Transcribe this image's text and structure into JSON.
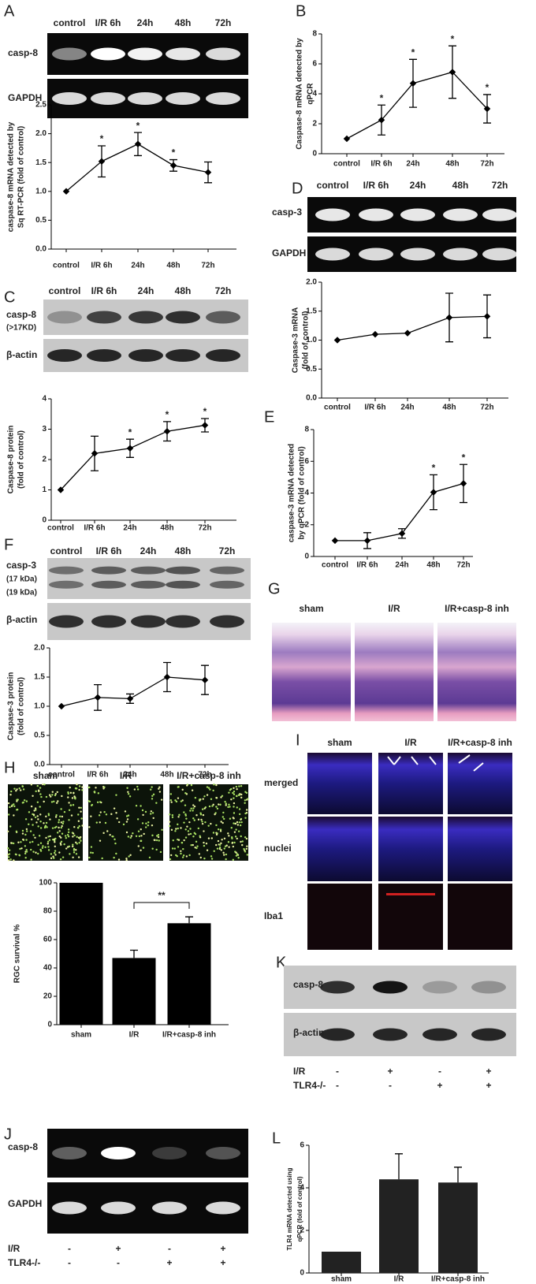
{
  "panel_labels": [
    "A",
    "B",
    "C",
    "D",
    "E",
    "F",
    "G",
    "H",
    "I",
    "J",
    "K",
    "L"
  ],
  "gels": [
    {
      "columns": [
        "control",
        "I/R 6h",
        "24h",
        "48h",
        "72h"
      ],
      "rows": [
        [
          "casp-8"
        ],
        [
          "GAPDH"
        ]
      ]
    },
    {
      "columns": [
        "control",
        "I/R 6h",
        "24h",
        "48h",
        "72h"
      ],
      "rows": [
        [
          "casp-3"
        ],
        [
          "GAPDH"
        ]
      ]
    },
    {
      "columns": [
        "control",
        "I/R 6h",
        "24h",
        "48h",
        "72h"
      ],
      "rows": [
        [
          "casp-8",
          "(>17KD)"
        ],
        [
          "β-actin"
        ]
      ]
    },
    {
      "columns": [
        "control",
        "I/R 6h",
        "24h",
        "48h",
        "72h"
      ],
      "rows": [
        [
          "casp-3",
          "(17 kDa)",
          "(19 kDa)"
        ],
        [
          "β-actin"
        ]
      ]
    },
    {
      "rows": [
        [
          "casp-8"
        ],
        [
          "β-actin"
        ]
      ],
      "conditions": [
        {
          "name": "I/R",
          "signs": [
            "-",
            "+",
            "-",
            "+"
          ]
        },
        {
          "name": "TLR4-/-",
          "signs": [
            "-",
            "-",
            "+",
            "+"
          ]
        }
      ]
    },
    {
      "rows": [
        [
          "casp-8"
        ],
        [
          "GAPDH"
        ]
      ],
      "conditions": [
        {
          "name": "I/R",
          "signs": [
            "-",
            "+",
            "-",
            "+"
          ]
        },
        {
          "name": "TLR4-/-",
          "signs": [
            "-",
            "-",
            "+",
            "+"
          ]
        }
      ]
    }
  ],
  "micrographs": [
    {
      "columns": [
        "sham",
        "I/R",
        "I/R+casp-8 inh"
      ]
    },
    {
      "columns": [
        "sham",
        "I/R",
        "I/R+casp-8 inh"
      ]
    },
    {
      "columns": [
        "sham",
        "I/R",
        "I/R+casp-8 inh"
      ],
      "rows": [
        "merged",
        "nuclei",
        "Iba1"
      ]
    }
  ],
  "chart_data": [
    {
      "type": "line",
      "ylabel": [
        "caspase-8 mRNA detected by",
        "Sq RT-PCR (fold of control)"
      ],
      "categories": [
        "control",
        "I/R 6h",
        "24h",
        "48h",
        "72h"
      ],
      "values": [
        1,
        1.52,
        1.82,
        1.45,
        1.33
      ],
      "errors": [
        0,
        0.27,
        0.2,
        0.1,
        0.18
      ],
      "significance": [
        null,
        "*",
        "*",
        "*",
        null
      ],
      "ylim": [
        0,
        2.5
      ],
      "yticks": [
        {
          "value": 0,
          "label": "0.0"
        },
        {
          "value": 0.5,
          "label": "0.5"
        },
        {
          "value": 1,
          "label": "1.0"
        },
        {
          "value": 1.5,
          "label": "1.5"
        },
        {
          "value": 2,
          "label": "2.0"
        },
        {
          "value": 2.5,
          "label": "2.5"
        }
      ],
      "color": "#000000"
    },
    {
      "type": "line",
      "ylabel": [
        "Caspase-8 mRNA detected by",
        "qPCR"
      ],
      "categories": [
        "control",
        "I/R 6h",
        "24h",
        "48h",
        "72h"
      ],
      "values": [
        1,
        2.25,
        4.7,
        5.45,
        3.0
      ],
      "errors": [
        0,
        1.0,
        1.6,
        1.75,
        0.95
      ],
      "significance": [
        null,
        "*",
        "*",
        "*",
        "*"
      ],
      "ylim": [
        0,
        8
      ],
      "yticks": [
        0,
        2,
        4,
        6,
        8
      ],
      "color": "#000000"
    },
    {
      "type": "line",
      "ylabel": [
        "Caspase-3 mRNA",
        "(fold of control)"
      ],
      "categories": [
        "control",
        "I/R 6h",
        "24h",
        "48h",
        "72h"
      ],
      "values": [
        1,
        1.1,
        1.12,
        1.39,
        1.41
      ],
      "errors": [
        0,
        0,
        0,
        0.42,
        0.37
      ],
      "ylim": [
        0,
        2
      ],
      "yticks": [
        {
          "value": 0,
          "label": "0.0"
        },
        {
          "value": 0.5,
          "label": "0.5"
        },
        {
          "value": 1,
          "label": "1.0"
        },
        {
          "value": 1.5,
          "label": "1.5"
        },
        {
          "value": 2,
          "label": "2.0"
        }
      ],
      "color": "#000000"
    },
    {
      "type": "line",
      "ylabel": [
        "Caspase-8 protein",
        "(fold of control)"
      ],
      "categories": [
        "control",
        "I/R 6h",
        "24h",
        "48h",
        "72h"
      ],
      "values": [
        1,
        2.2,
        2.37,
        2.93,
        3.13
      ],
      "errors": [
        0,
        0.57,
        0.3,
        0.32,
        0.22
      ],
      "significance": [
        null,
        null,
        "*",
        "*",
        "*"
      ],
      "ylim": [
        0,
        4
      ],
      "yticks": [
        0,
        1,
        2,
        3,
        4
      ],
      "color": "#000000"
    },
    {
      "type": "line",
      "ylabel": [
        "caspase-3 mRNA detected",
        "by qPCR (fold of control)"
      ],
      "categories": [
        "control",
        "I/R 6h",
        "24h",
        "48h",
        "72h"
      ],
      "values": [
        1,
        1.0,
        1.45,
        4.05,
        4.6
      ],
      "errors": [
        0,
        0.5,
        0.3,
        1.1,
        1.2
      ],
      "significance": [
        null,
        null,
        null,
        "*",
        "*"
      ],
      "ylim": [
        0,
        8
      ],
      "yticks": [
        0,
        2,
        4,
        6,
        8
      ],
      "color": "#000000"
    },
    {
      "type": "line",
      "ylabel": [
        "Caspase-3 protein",
        "(fold of control)"
      ],
      "categories": [
        "control",
        "I/R 6h",
        "24h",
        "48h",
        "72h"
      ],
      "values": [
        1,
        1.15,
        1.13,
        1.5,
        1.45
      ],
      "errors": [
        0,
        0.22,
        0.08,
        0.25,
        0.25
      ],
      "ylim": [
        0,
        2
      ],
      "yticks": [
        {
          "value": 0,
          "label": "0.0"
        },
        {
          "value": 0.5,
          "label": "0.5"
        },
        {
          "value": 1,
          "label": "1.0"
        },
        {
          "value": 1.5,
          "label": "1.5"
        },
        {
          "value": 2,
          "label": "2.0"
        }
      ],
      "color": "#000000"
    },
    {
      "type": "bar",
      "ylabel": [
        "RGC survival %"
      ],
      "categories": [
        "sham",
        "I/R",
        "I/R+casp-8 inh"
      ],
      "values": [
        100,
        47,
        71.5
      ],
      "errors": [
        0,
        5.5,
        4.5
      ],
      "bracket_label": "**",
      "ylim": [
        0,
        100
      ],
      "yticks": [
        0,
        20,
        40,
        60,
        80,
        100
      ],
      "color": "#000000"
    },
    {
      "type": "bar",
      "ylabel": [
        "TLR4 mRNA detected using",
        "qPCR (fold of control)"
      ],
      "categories": [
        "sham",
        "I/R",
        "I/R+casp-8 inh"
      ],
      "values": [
        1,
        4.4,
        4.25
      ],
      "errors": [
        0,
        1.2,
        0.72
      ],
      "ylim": [
        0,
        6
      ],
      "yticks": [
        0,
        2,
        4,
        6
      ],
      "color": "#222222"
    }
  ]
}
